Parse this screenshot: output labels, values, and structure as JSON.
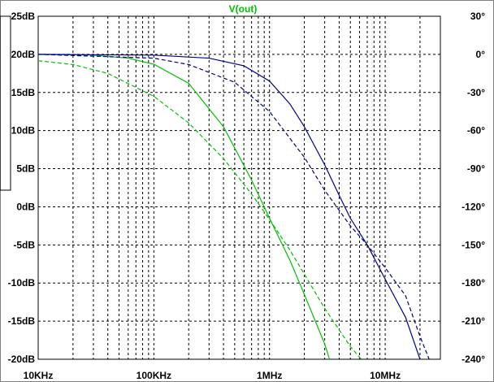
{
  "chart_data": {
    "type": "line",
    "title": "V(out)",
    "x_scale": "log",
    "xlim_hz": [
      10000,
      30000000
    ],
    "x_ticks": [
      {
        "value": 10000,
        "label": "10KHz"
      },
      {
        "value": 100000,
        "label": "100KHz"
      },
      {
        "value": 1000000,
        "label": "1MHz"
      },
      {
        "value": 10000000,
        "label": "10MHz"
      }
    ],
    "y_left": {
      "unit": "dB",
      "lim": [
        -20,
        25
      ],
      "ticks": [
        {
          "value": 25,
          "label": "25dB"
        },
        {
          "value": 20,
          "label": "20dB"
        },
        {
          "value": 15,
          "label": "15dB"
        },
        {
          "value": 10,
          "label": "10dB"
        },
        {
          "value": 5,
          "label": "5dB"
        },
        {
          "value": 0,
          "label": "0dB"
        },
        {
          "value": -5,
          "label": "-5dB"
        },
        {
          "value": -10,
          "label": "-10dB"
        },
        {
          "value": -15,
          "label": "-15dB"
        },
        {
          "value": -20,
          "label": "-20dB"
        }
      ]
    },
    "y_right": {
      "unit": "degrees",
      "lim": [
        -240,
        30
      ],
      "ticks": [
        {
          "value": 30,
          "label": "30°"
        },
        {
          "value": 0,
          "label": "0°"
        },
        {
          "value": -30,
          "label": "-30°"
        },
        {
          "value": -60,
          "label": "-60°"
        },
        {
          "value": -90,
          "label": "-90°"
        },
        {
          "value": -120,
          "label": "-120°"
        },
        {
          "value": -150,
          "label": "-150°"
        },
        {
          "value": -180,
          "label": "-180°"
        },
        {
          "value": -210,
          "label": "-210°"
        },
        {
          "value": -240,
          "label": "-240°"
        }
      ]
    },
    "grid": true,
    "colors": {
      "green": "#00c000",
      "blue": "#00008b",
      "grid": "#000000"
    },
    "series": [
      {
        "axis": "left",
        "style": "solid",
        "color": "#00c000",
        "points": [
          [
            10000,
            20.0
          ],
          [
            30000,
            19.9
          ],
          [
            60000,
            19.5
          ],
          [
            100000,
            18.7
          ],
          [
            200000,
            16.2
          ],
          [
            400000,
            10.5
          ],
          [
            700000,
            3.5
          ],
          [
            1000000,
            -1.5
          ],
          [
            1500000,
            -7.0
          ],
          [
            2000000,
            -11.5
          ],
          [
            3000000,
            -18.0
          ],
          [
            3300000,
            -20.0
          ]
        ]
      },
      {
        "axis": "right",
        "style": "dashed",
        "color": "#00c000",
        "points": [
          [
            10000,
            -5
          ],
          [
            20000,
            -8
          ],
          [
            40000,
            -15
          ],
          [
            70000,
            -26
          ],
          [
            100000,
            -33
          ],
          [
            200000,
            -54
          ],
          [
            400000,
            -82
          ],
          [
            700000,
            -110
          ],
          [
            1000000,
            -130
          ],
          [
            1500000,
            -154
          ],
          [
            2000000,
            -173
          ],
          [
            3000000,
            -200
          ],
          [
            5000000,
            -230
          ],
          [
            6200000,
            -240
          ]
        ]
      },
      {
        "axis": "left",
        "style": "solid",
        "color": "#00008b",
        "points": [
          [
            10000,
            20.0
          ],
          [
            100000,
            19.9
          ],
          [
            300000,
            19.5
          ],
          [
            600000,
            18.5
          ],
          [
            1000000,
            16.5
          ],
          [
            1500000,
            13.5
          ],
          [
            2000000,
            10.5
          ],
          [
            3000000,
            5.5
          ],
          [
            4000000,
            1.5
          ],
          [
            5000000,
            -1.5
          ],
          [
            7000000,
            -5.0
          ],
          [
            10000000,
            -9.5
          ],
          [
            15000000,
            -14.5
          ],
          [
            20000000,
            -20.0
          ]
        ]
      },
      {
        "axis": "right",
        "style": "dashed",
        "color": "#00008b",
        "points": [
          [
            10000,
            0
          ],
          [
            100000,
            -3
          ],
          [
            200000,
            -8
          ],
          [
            500000,
            -22
          ],
          [
            1000000,
            -45
          ],
          [
            2000000,
            -81
          ],
          [
            3000000,
            -107
          ],
          [
            5000000,
            -135
          ],
          [
            7000000,
            -150
          ],
          [
            10000000,
            -168
          ],
          [
            15000000,
            -190
          ],
          [
            20000000,
            -222
          ],
          [
            24000000,
            -240
          ]
        ]
      }
    ]
  }
}
